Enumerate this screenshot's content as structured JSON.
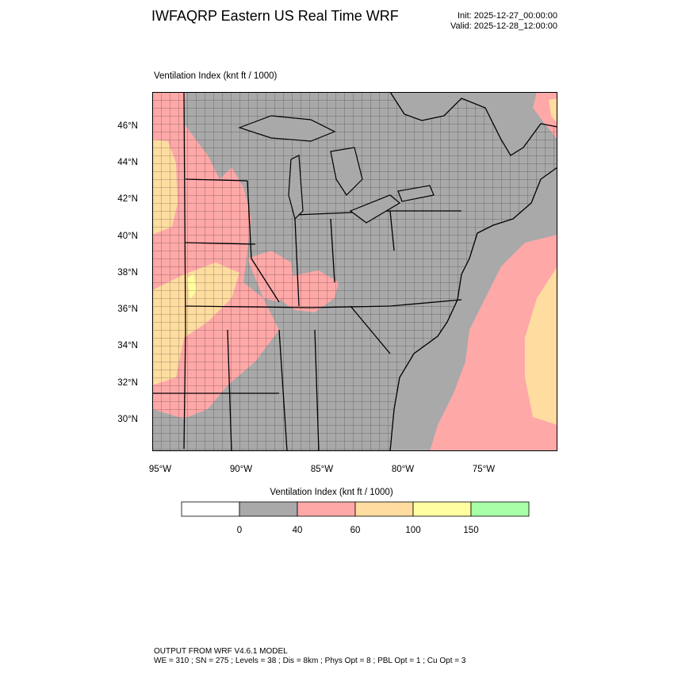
{
  "header": {
    "title": "IWFAQRP Eastern US Real Time WRF",
    "init": "Init: 2025-12-27_00:00:00",
    "valid": "Valid: 2025-12-28_12:00:00"
  },
  "plot": {
    "field_label": "Ventilation Index   (knt ft / 1000)"
  },
  "axes": {
    "lat_labels": [
      "46°N",
      "44°N",
      "42°N",
      "40°N",
      "38°N",
      "36°N",
      "34°N",
      "32°N",
      "30°N"
    ],
    "lon_labels": [
      "95°W",
      "90°W",
      "85°W",
      "80°W",
      "75°W"
    ]
  },
  "legend": {
    "title": "Ventilation Index  (knt ft / 1000)",
    "ticks": [
      "0",
      "40",
      "60",
      "100",
      "150"
    ],
    "bins": [
      {
        "color": "#ffffff"
      },
      {
        "color": "#a9a9a9"
      },
      {
        "color": "#ffa8a8"
      },
      {
        "color": "#ffdca0"
      },
      {
        "color": "#ffffa0"
      },
      {
        "color": "#a8ffa8"
      }
    ]
  },
  "colors": {
    "gray": "#a9a9a9",
    "pink": "#ffa8a8",
    "tan": "#ffdca0",
    "yellow": "#ffffa0",
    "boundary": "#000000"
  },
  "footer": {
    "line1": "OUTPUT FROM WRF V4.6.1 MODEL",
    "line2": "WE = 310 ; SN = 275 ; Levels = 38 ; Dis = 8km ; Phys Opt = 8 ; PBL Opt = 1 ; Cu Opt = 3"
  }
}
